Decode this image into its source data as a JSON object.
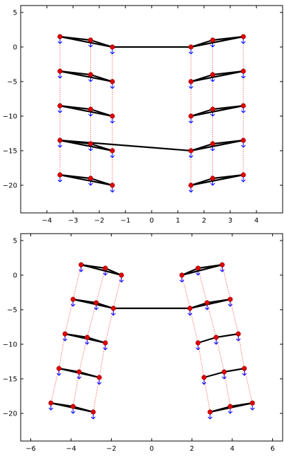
{
  "chart_data": [
    {
      "type": "scatter",
      "title": "",
      "xlabel": "",
      "ylabel": "",
      "xlim": [
        -5,
        5
      ],
      "ylim": [
        -24,
        6
      ],
      "xticks": [
        -4,
        -3,
        -2,
        -1,
        0,
        1,
        2,
        3,
        4
      ],
      "yticks": [
        5,
        0,
        -5,
        -10,
        -15,
        -20
      ],
      "points": [
        [
          -3.5,
          1.5
        ],
        [
          -2.33,
          1.0
        ],
        [
          -1.5,
          0.0
        ],
        [
          1.5,
          0.0
        ],
        [
          2.33,
          1.0
        ],
        [
          3.5,
          1.5
        ],
        [
          -3.5,
          -3.5
        ],
        [
          -2.33,
          -4.0
        ],
        [
          -1.5,
          -5.0
        ],
        [
          1.5,
          -5.0
        ],
        [
          2.33,
          -4.0
        ],
        [
          3.5,
          -3.5
        ],
        [
          -3.5,
          -8.5
        ],
        [
          -2.33,
          -9.0
        ],
        [
          -1.5,
          -10.0
        ],
        [
          1.5,
          -10.0
        ],
        [
          2.33,
          -9.0
        ],
        [
          3.5,
          -8.5
        ],
        [
          -3.5,
          -13.5
        ],
        [
          -2.33,
          -14.0
        ],
        [
          -1.5,
          -15.0
        ],
        [
          1.5,
          -15.0
        ],
        [
          2.33,
          -14.0
        ],
        [
          3.5,
          -13.5
        ],
        [
          -3.5,
          -18.5
        ],
        [
          -2.33,
          -19.0
        ],
        [
          -1.5,
          -20.0
        ],
        [
          1.5,
          -20.0
        ],
        [
          2.33,
          -19.0
        ],
        [
          3.5,
          -18.5
        ]
      ],
      "links": [
        [
          0,
          1
        ],
        [
          1,
          2
        ],
        [
          0,
          2
        ],
        [
          2,
          3
        ],
        [
          3,
          4
        ],
        [
          4,
          5
        ],
        [
          3,
          5
        ],
        [
          6,
          7
        ],
        [
          7,
          8
        ],
        [
          6,
          8
        ],
        [
          9,
          10
        ],
        [
          10,
          11
        ],
        [
          9,
          11
        ],
        [
          12,
          13
        ],
        [
          13,
          14
        ],
        [
          12,
          14
        ],
        [
          15,
          16
        ],
        [
          16,
          17
        ],
        [
          15,
          17
        ],
        [
          18,
          19
        ],
        [
          19,
          20
        ],
        [
          18,
          20
        ],
        [
          21,
          22
        ],
        [
          22,
          23
        ],
        [
          21,
          23
        ],
        [
          18,
          21
        ],
        [
          24,
          25
        ],
        [
          25,
          26
        ],
        [
          24,
          26
        ],
        [
          27,
          28
        ],
        [
          28,
          29
        ],
        [
          27,
          29
        ]
      ],
      "dashed": [
        [
          0,
          6
        ],
        [
          6,
          12
        ],
        [
          12,
          18
        ],
        [
          18,
          24
        ],
        [
          1,
          7
        ],
        [
          7,
          13
        ],
        [
          13,
          19
        ],
        [
          19,
          25
        ],
        [
          2,
          8
        ],
        [
          8,
          14
        ],
        [
          14,
          20
        ],
        [
          20,
          26
        ],
        [
          3,
          9
        ],
        [
          9,
          15
        ],
        [
          15,
          21
        ],
        [
          21,
          27
        ],
        [
          4,
          10
        ],
        [
          10,
          16
        ],
        [
          16,
          22
        ],
        [
          22,
          28
        ],
        [
          5,
          11
        ],
        [
          11,
          17
        ],
        [
          17,
          23
        ],
        [
          23,
          29
        ]
      ],
      "arrow_length": 1.0,
      "colors": {
        "link": "#000000",
        "dashed": "#ff3b30",
        "joint": "#e00000",
        "arrow": "#0000ff"
      }
    },
    {
      "type": "scatter",
      "title": "",
      "xlabel": "",
      "ylabel": "",
      "xlim": [
        -6.5,
        6.5
      ],
      "ylim": [
        -24,
        6
      ],
      "xticks": [
        -6,
        -4,
        -2,
        0,
        2,
        4,
        6
      ],
      "yticks": [
        5,
        0,
        -5,
        -10,
        -15,
        -20
      ],
      "points": [
        [
          -3.5,
          1.5
        ],
        [
          -2.3,
          1.0
        ],
        [
          -1.5,
          0.0
        ],
        [
          1.5,
          0.0
        ],
        [
          2.3,
          1.0
        ],
        [
          3.5,
          1.5
        ],
        [
          -3.9,
          -3.5
        ],
        [
          -2.75,
          -4.0
        ],
        [
          -1.9,
          -4.8
        ],
        [
          1.9,
          -4.8
        ],
        [
          2.75,
          -4.0
        ],
        [
          3.9,
          -3.5
        ],
        [
          -4.3,
          -8.5
        ],
        [
          -3.2,
          -9.0
        ],
        [
          -2.3,
          -9.8
        ],
        [
          2.3,
          -9.8
        ],
        [
          3.2,
          -9.0
        ],
        [
          4.3,
          -8.5
        ],
        [
          -4.6,
          -13.5
        ],
        [
          -3.6,
          -14.0
        ],
        [
          -2.6,
          -14.8
        ],
        [
          2.6,
          -14.8
        ],
        [
          3.6,
          -14.0
        ],
        [
          4.6,
          -13.5
        ],
        [
          -5.0,
          -18.5
        ],
        [
          -3.9,
          -19.0
        ],
        [
          -2.9,
          -19.8
        ],
        [
          2.9,
          -19.8
        ],
        [
          3.9,
          -19.0
        ],
        [
          5.0,
          -18.5
        ]
      ],
      "links": [
        [
          0,
          1
        ],
        [
          1,
          2
        ],
        [
          0,
          2
        ],
        [
          3,
          4
        ],
        [
          4,
          5
        ],
        [
          3,
          5
        ],
        [
          6,
          7
        ],
        [
          7,
          8
        ],
        [
          6,
          8
        ],
        [
          8,
          9
        ],
        [
          9,
          10
        ],
        [
          10,
          11
        ],
        [
          9,
          11
        ],
        [
          12,
          13
        ],
        [
          13,
          14
        ],
        [
          12,
          14
        ],
        [
          15,
          16
        ],
        [
          16,
          17
        ],
        [
          18,
          19
        ],
        [
          19,
          20
        ],
        [
          18,
          20
        ],
        [
          21,
          22
        ],
        [
          22,
          23
        ],
        [
          24,
          25
        ],
        [
          25,
          26
        ],
        [
          24,
          26
        ],
        [
          27,
          28
        ],
        [
          28,
          29
        ],
        [
          27,
          29
        ]
      ],
      "dashed": [
        [
          0,
          6
        ],
        [
          6,
          12
        ],
        [
          12,
          18
        ],
        [
          18,
          24
        ],
        [
          1,
          7
        ],
        [
          7,
          13
        ],
        [
          13,
          19
        ],
        [
          19,
          25
        ],
        [
          2,
          8
        ],
        [
          8,
          14
        ],
        [
          14,
          20
        ],
        [
          20,
          26
        ],
        [
          3,
          9
        ],
        [
          9,
          15
        ],
        [
          15,
          21
        ],
        [
          21,
          27
        ],
        [
          4,
          10
        ],
        [
          10,
          16
        ],
        [
          16,
          22
        ],
        [
          22,
          28
        ],
        [
          5,
          11
        ],
        [
          11,
          17
        ],
        [
          17,
          23
        ],
        [
          23,
          29
        ]
      ],
      "arrow_length": 1.0,
      "colors": {
        "link": "#000000",
        "dashed": "#ff3b30",
        "joint": "#e00000",
        "arrow": "#0000ff"
      }
    }
  ]
}
